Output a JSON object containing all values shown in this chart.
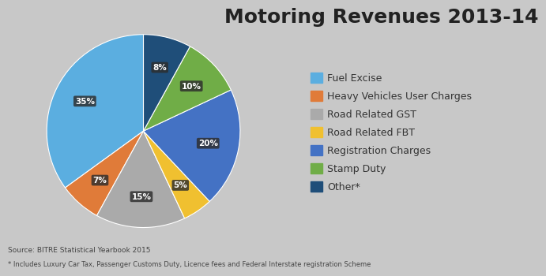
{
  "title": "Motoring Revenues 2013-14",
  "labels": [
    "Fuel Excise",
    "Heavy Vehicles User Charges",
    "Road Related GST",
    "Road Related FBT",
    "Registration Charges",
    "Stamp Duty",
    "Other*"
  ],
  "values": [
    35,
    7,
    15,
    5,
    20,
    10,
    8
  ],
  "colors": [
    "#5baee0",
    "#e07b39",
    "#aaaaaa",
    "#f0c030",
    "#4472c4",
    "#70ad47",
    "#1f4e79"
  ],
  "pct_labels": [
    "35%",
    "7%",
    "15%",
    "5%",
    "20%",
    "10%",
    "8%"
  ],
  "source_text": "Source: BITRE Statistical Yearbook 2015",
  "footnote_text": "* Includes Luxury Car Tax, Passenger Customs Duty, Licence fees and Federal Interstate registration Scheme",
  "background_color": "#c8c8c8",
  "startangle": 90,
  "title_fontsize": 18,
  "legend_fontsize": 9
}
